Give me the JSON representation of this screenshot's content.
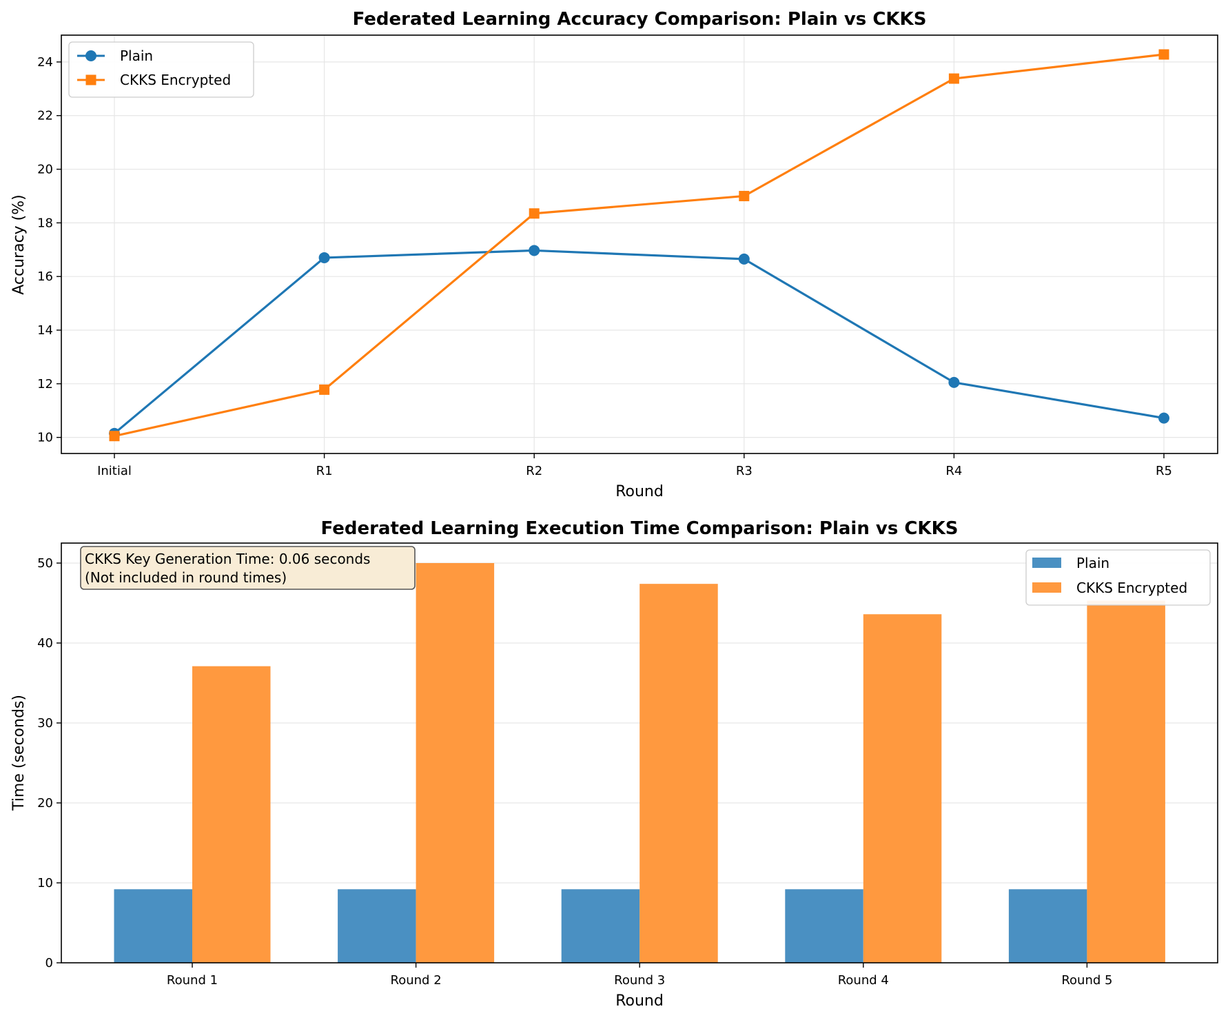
{
  "colors": {
    "plain": "#1f77b4",
    "ckks": "#ff7f0e",
    "plain_bar": "#4a90c2",
    "ckks_bar": "#ff993f",
    "grid": "#e6e6e6",
    "annotation_bg": "#f8ecd6"
  },
  "chart_data": [
    {
      "type": "line",
      "title": "Federated Learning Accuracy Comparison: Plain vs CKKS",
      "xlabel": "Round",
      "ylabel": "Accuracy (%)",
      "categories": [
        "Initial",
        "R1",
        "R2",
        "R3",
        "R4",
        "R5"
      ],
      "yticks": [
        "10",
        "12",
        "14",
        "16",
        "18",
        "20",
        "22",
        "24"
      ],
      "ylim": [
        9.4,
        25.0
      ],
      "grid": true,
      "legend_position": "top-left",
      "series": [
        {
          "name": "Plain",
          "marker": "circle",
          "color": "#1f77b4",
          "values": [
            10.15,
            16.7,
            16.97,
            16.65,
            12.05,
            10.72
          ]
        },
        {
          "name": "CKKS Encrypted",
          "marker": "square",
          "color": "#ff7f0e",
          "values": [
            10.05,
            11.78,
            18.35,
            19.0,
            23.38,
            24.28
          ]
        }
      ]
    },
    {
      "type": "bar",
      "title": "Federated Learning Execution Time Comparison: Plain vs CKKS",
      "xlabel": "Round",
      "ylabel": "Time (seconds)",
      "categories": [
        "Round 1",
        "Round 2",
        "Round 3",
        "Round 4",
        "Round 5"
      ],
      "yticks": [
        "0",
        "10",
        "20",
        "30",
        "40",
        "50"
      ],
      "ylim": [
        0,
        52.5
      ],
      "grid": true,
      "legend_position": "top-right",
      "annotation": [
        "CKKS Key Generation Time: 0.06 seconds",
        "(Not included in round times)"
      ],
      "series": [
        {
          "name": "Plain",
          "color": "#4a90c2",
          "values": [
            9.2,
            9.2,
            9.2,
            9.2,
            9.2
          ]
        },
        {
          "name": "CKKS Encrypted",
          "color": "#ff993f",
          "values": [
            37.1,
            50.0,
            47.4,
            43.6,
            45.3
          ]
        }
      ]
    }
  ]
}
